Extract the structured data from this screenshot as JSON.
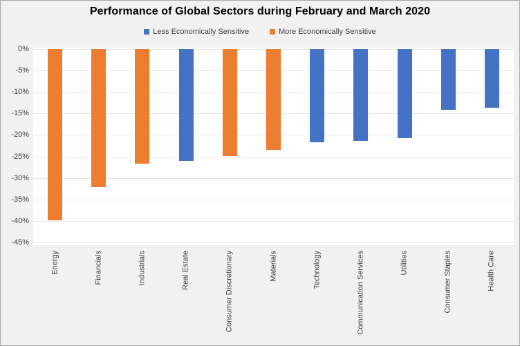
{
  "title": "Performance of Global Sectors during February and March 2020",
  "legend": {
    "items": [
      {
        "label": "Less Economically Sensitive",
        "group": "less",
        "color": "#4472C4"
      },
      {
        "label": "More Economically Sensitive",
        "group": "more",
        "color": "#ED7D31"
      }
    ]
  },
  "colors": {
    "less": "#4472C4",
    "more": "#ED7D31",
    "background": "#F1F1F1",
    "plot_background": "#FFFFFF",
    "gridline": "#E6E6E6",
    "axis_text": "#3F3F3F",
    "title_text": "#000000",
    "border": "#A9A9A9"
  },
  "chart_data": {
    "type": "bar",
    "title": "Performance of Global Sectors during February and March 2020",
    "categories": [
      "Energy",
      "Financials",
      "Industrials",
      "Real Estate",
      "Consumer Discretionary",
      "Materials",
      "Technology",
      "Communication Services",
      "Utilities",
      "Consumer Staples",
      "Health Care"
    ],
    "series": [
      {
        "name": "Sector performance (%)",
        "values": [
          -39.9,
          -32.1,
          -26.6,
          -26.1,
          -24.9,
          -23.4,
          -21.7,
          -21.4,
          -20.7,
          -14.2,
          -13.6
        ]
      }
    ],
    "groups": [
      "more",
      "more",
      "more",
      "less",
      "more",
      "more",
      "less",
      "less",
      "less",
      "less",
      "less"
    ],
    "legend_entries": [
      "Less Economically Sensitive",
      "More Economically Sensitive"
    ],
    "xlabel": "",
    "ylabel": "",
    "ylim": [
      -45,
      0
    ],
    "ytick_step": 5,
    "ytick_labels": [
      "0%",
      "-5%",
      "-10%",
      "-15%",
      "-20%",
      "-25%",
      "-30%",
      "-35%",
      "-40%",
      "-45%"
    ],
    "grid": true,
    "legend_position": "top",
    "bar_orientation": "vertical",
    "xtick_rotation": 90
  }
}
